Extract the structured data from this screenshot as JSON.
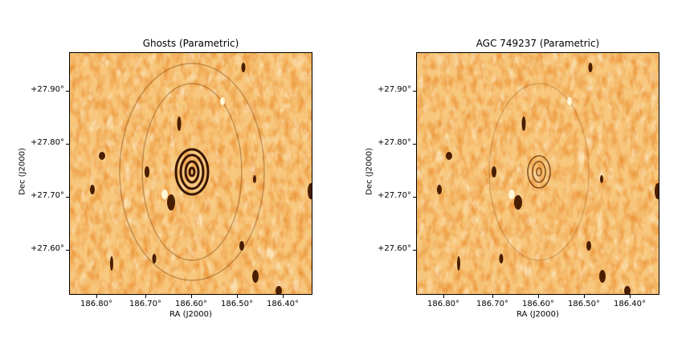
{
  "panels": [
    {
      "title": "Ghosts (Parametric)",
      "xlabel": "RA (J2000)",
      "ylabel": "Dec (J2000)",
      "xticks": [
        "186.80°",
        "186.70°",
        "186.60°",
        "186.50°",
        "186.40°"
      ],
      "yticks": [
        "+27.90°",
        "+27.80°",
        "+27.70°",
        "+27.60°"
      ],
      "ring_strength": 1.0
    },
    {
      "title": "AGC 749237 (Parametric)",
      "xlabel": "RA (J2000)",
      "ylabel": "Dec (J2000)",
      "xticks": [
        "186.80°",
        "186.70°",
        "186.60°",
        "186.50°",
        "186.40°"
      ],
      "yticks": [
        "+27.90°",
        "+27.80°",
        "+27.70°",
        "+27.60°"
      ],
      "ring_strength": 0.35
    }
  ],
  "colors": {
    "background_noise": "#f0a040",
    "dark_blob": "#5a2a00",
    "light": "#fff2c8"
  }
}
